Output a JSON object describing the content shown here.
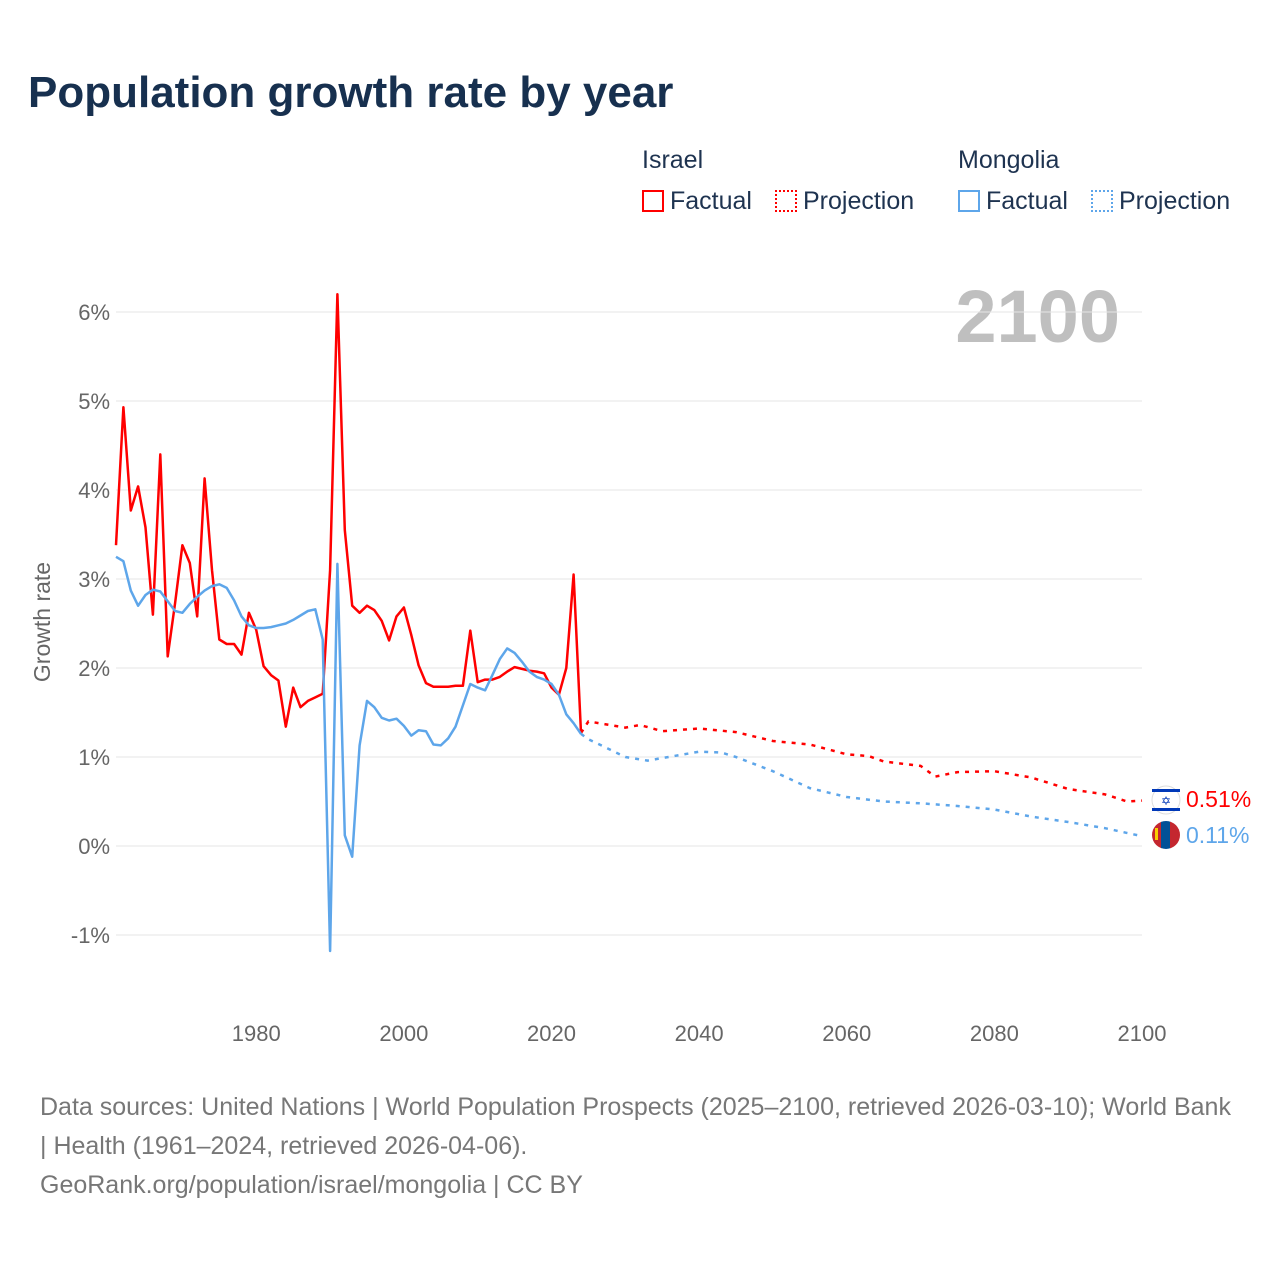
{
  "title": "Population growth rate by year",
  "legend": {
    "groups": [
      {
        "name": "Israel",
        "color": "#ff0000",
        "factual": "Factual",
        "projection": "Projection"
      },
      {
        "name": "Mongolia",
        "color": "#5ea6ea",
        "factual": "Factual",
        "projection": "Projection"
      }
    ]
  },
  "year_label": "2100",
  "footer": {
    "sources": "Data sources: United Nations | World Population Prospects (2025–2100, retrieved 2026-03-10); World Bank | Health (1961–2024, retrieved 2026-04-06).",
    "link": "GeoRank.org/population/israel/mongolia | CC BY"
  },
  "end_labels": [
    {
      "country": "Israel",
      "value": "0.51%",
      "flag": "israel-flag-icon"
    },
    {
      "country": "Mongolia",
      "value": "0.11%",
      "flag": "mongolia-flag-icon"
    }
  ],
  "chart_data": {
    "type": "line",
    "title": "Population growth rate by year",
    "ylabel": "Growth rate",
    "xlabel": "",
    "xlim": [
      1961,
      2100
    ],
    "ylim": [
      -1.3,
      6.3
    ],
    "yticks": [
      -1,
      0,
      1,
      2,
      3,
      4,
      5,
      6
    ],
    "ytick_labels": [
      "-1%",
      "0%",
      "1%",
      "2%",
      "3%",
      "4%",
      "5%",
      "6%"
    ],
    "xticks": [
      1980,
      2000,
      2020,
      2040,
      2060,
      2080,
      2100
    ],
    "xtick_labels": [
      "1980",
      "2000",
      "2020",
      "2040",
      "2060",
      "2080",
      "2100"
    ],
    "grid": true,
    "series": [
      {
        "name": "Israel Factual",
        "color": "#ff0000",
        "style": "solid",
        "x_start": 1961,
        "values": [
          3.38,
          4.93,
          3.77,
          4.04,
          3.58,
          2.6,
          4.4,
          2.13,
          2.73,
          3.38,
          3.18,
          2.58,
          4.13,
          3.1,
          2.32,
          2.27,
          2.27,
          2.15,
          2.62,
          2.43,
          2.02,
          1.92,
          1.86,
          1.34,
          1.78,
          1.56,
          1.63,
          1.67,
          1.71,
          3.1,
          6.2,
          3.55,
          2.7,
          2.62,
          2.7,
          2.65,
          2.53,
          2.31,
          2.58,
          2.68,
          2.37,
          2.03,
          1.83,
          1.79,
          1.79,
          1.79,
          1.8,
          1.8,
          2.42,
          1.84,
          1.87,
          1.87,
          1.9,
          1.96,
          2.01,
          1.99,
          1.97,
          1.96,
          1.94,
          1.78,
          1.7,
          2.0,
          3.05,
          1.27
        ]
      },
      {
        "name": "Israel Projection",
        "color": "#ff0000",
        "style": "dotted",
        "x": [
          2024,
          2025,
          2030,
          2032,
          2035,
          2040,
          2045,
          2050,
          2055,
          2060,
          2063,
          2065,
          2070,
          2072,
          2075,
          2080,
          2085,
          2090,
          2095,
          2098,
          2100
        ],
        "values": [
          1.27,
          1.4,
          1.33,
          1.36,
          1.29,
          1.32,
          1.28,
          1.18,
          1.14,
          1.03,
          1.01,
          0.95,
          0.9,
          0.78,
          0.83,
          0.84,
          0.77,
          0.64,
          0.58,
          0.5,
          0.51
        ]
      },
      {
        "name": "Mongolia Factual",
        "color": "#5ea6ea",
        "style": "solid",
        "x_start": 1961,
        "values": [
          3.25,
          3.2,
          2.87,
          2.7,
          2.82,
          2.88,
          2.86,
          2.75,
          2.64,
          2.62,
          2.72,
          2.8,
          2.87,
          2.92,
          2.94,
          2.9,
          2.76,
          2.58,
          2.48,
          2.45,
          2.45,
          2.46,
          2.48,
          2.5,
          2.54,
          2.59,
          2.64,
          2.66,
          2.32,
          -1.18,
          3.17,
          0.12,
          -0.12,
          1.13,
          1.63,
          1.56,
          1.44,
          1.41,
          1.43,
          1.35,
          1.24,
          1.3,
          1.29,
          1.14,
          1.13,
          1.21,
          1.34,
          1.58,
          1.82,
          1.78,
          1.75,
          1.92,
          2.1,
          2.22,
          2.17,
          2.07,
          1.96,
          1.9,
          1.87,
          1.82,
          1.7,
          1.48,
          1.38,
          1.26
        ]
      },
      {
        "name": "Mongolia Projection",
        "color": "#5ea6ea",
        "style": "dotted",
        "x": [
          2024,
          2025,
          2030,
          2033,
          2040,
          2043,
          2045,
          2050,
          2055,
          2060,
          2065,
          2070,
          2075,
          2080,
          2085,
          2090,
          2095,
          2100
        ],
        "values": [
          1.26,
          1.2,
          1.0,
          0.96,
          1.06,
          1.05,
          1.0,
          0.84,
          0.65,
          0.55,
          0.5,
          0.48,
          0.45,
          0.41,
          0.33,
          0.27,
          0.2,
          0.11
        ]
      }
    ]
  }
}
